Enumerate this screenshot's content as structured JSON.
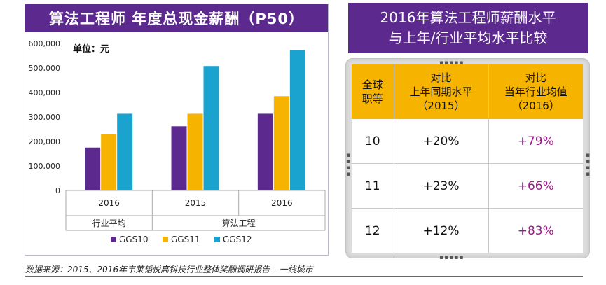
{
  "left_title": "算法工程师 年度总现金薪酬（P50）",
  "chart_data": {
    "type": "bar",
    "unit_label": "单位：元",
    "categories": [
      "2016",
      "2015",
      "2016"
    ],
    "groups": [
      {
        "label": "行业平均",
        "span": 1
      },
      {
        "label": "算法工程",
        "span": 2
      }
    ],
    "series": [
      {
        "name": "GGS10",
        "color": "#5c2a8e",
        "values": [
          175000,
          262000,
          313000
        ]
      },
      {
        "name": "GGS11",
        "color": "#f6b400",
        "values": [
          230000,
          313000,
          385000
        ]
      },
      {
        "name": "GGS12",
        "color": "#1ba3cf",
        "values": [
          313000,
          508000,
          572000
        ]
      }
    ],
    "ylim": [
      0,
      600000
    ],
    "yticks": [
      "0",
      "100,000",
      "200,000",
      "300,000",
      "400,000",
      "500,000",
      "600,000"
    ],
    "legend_position": "bottom"
  },
  "right_title": {
    "line1": "2016年算法工程师薪酬水平",
    "line2": "与上年/行业平均水平比较"
  },
  "table": {
    "headers": [
      [
        "全球",
        "职等"
      ],
      [
        "对比",
        "上年同期水平",
        "（2015）"
      ],
      [
        "对比",
        "当年行业均值",
        "（2016）"
      ]
    ],
    "rows": [
      {
        "grade": "10",
        "yoy": "+20%",
        "industry": "+79%"
      },
      {
        "grade": "11",
        "yoy": "+23%",
        "industry": "+66%"
      },
      {
        "grade": "12",
        "yoy": "+12%",
        "industry": "+83%"
      }
    ]
  },
  "source": "数据来源：2015、2016年韦莱韬悦高科技行业整体奖酬调研报告 – 一线城市"
}
